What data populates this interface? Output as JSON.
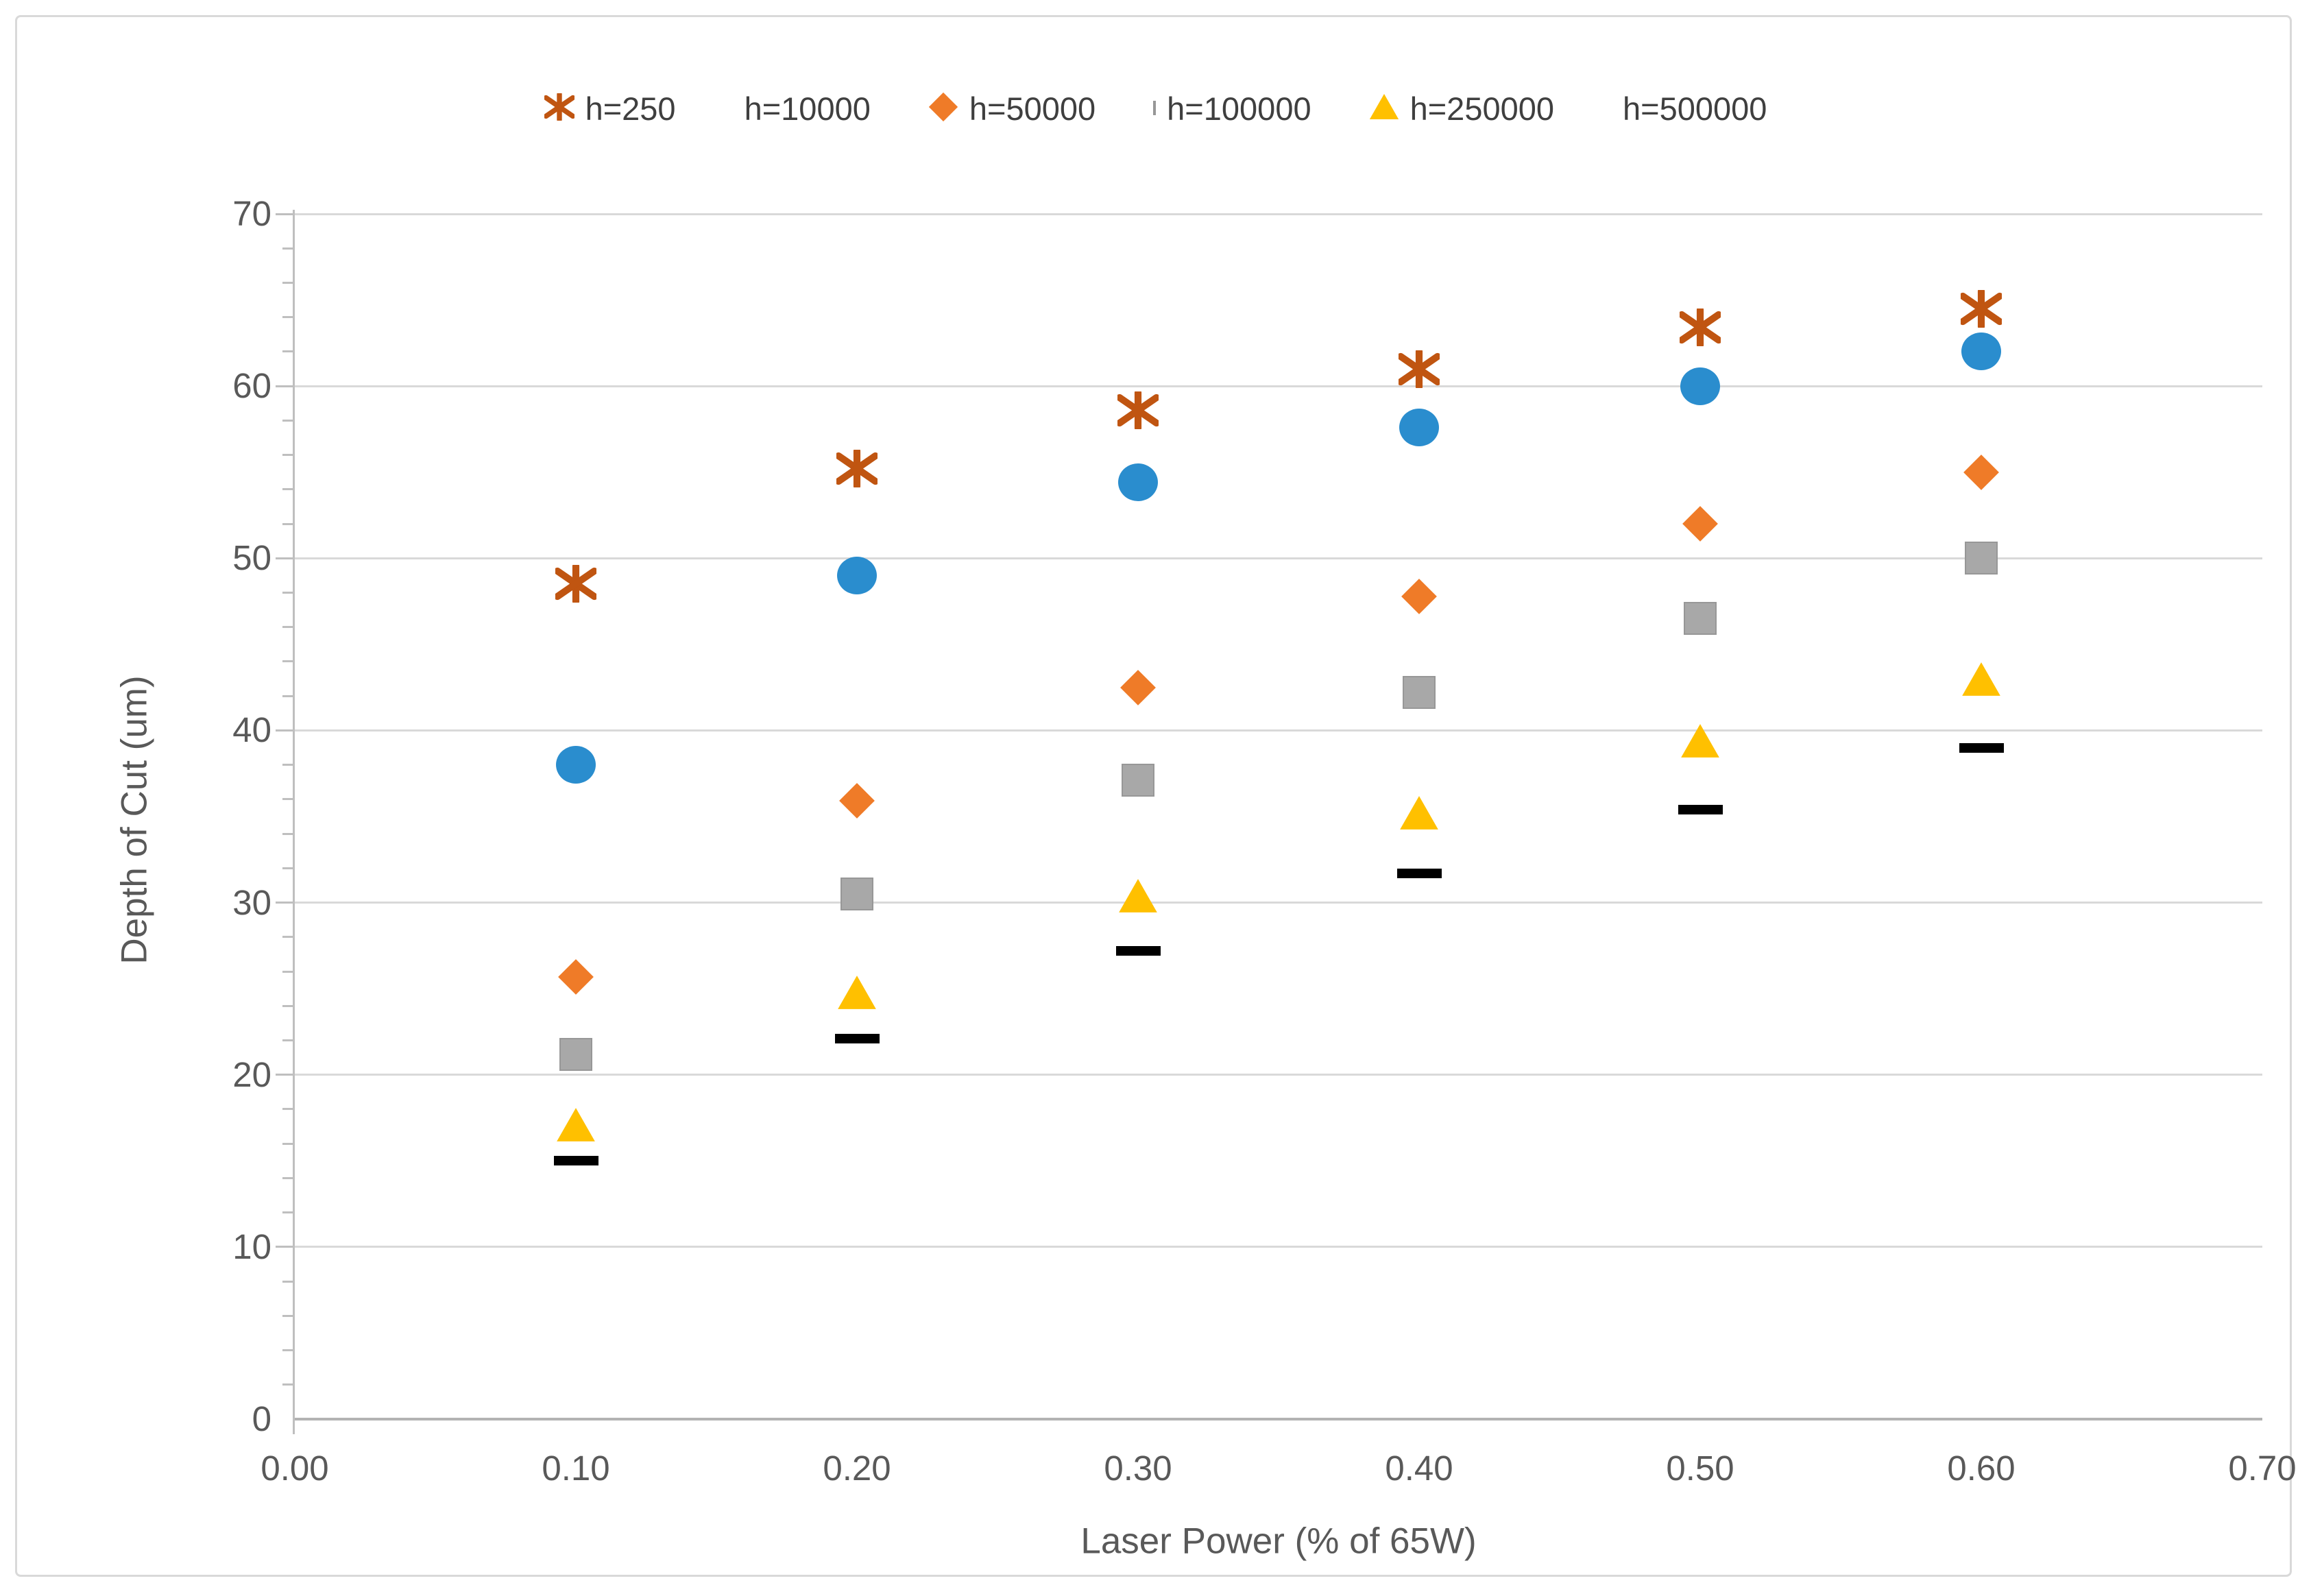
{
  "chart_data": {
    "type": "scatter",
    "title": "",
    "xlabel": "Laser Power (% of 65W)",
    "ylabel": "Depth of Cut (um)",
    "xlim": [
      0.0,
      0.7
    ],
    "ylim": [
      0,
      70
    ],
    "x_ticks": [
      "0.00",
      "0.10",
      "0.20",
      "0.30",
      "0.40",
      "0.50",
      "0.60",
      "0.70"
    ],
    "y_ticks": [
      "70",
      "60",
      "50",
      "40",
      "30",
      "20",
      "10",
      "0"
    ],
    "grid": "horizontal-only",
    "legend_position": "top",
    "x": [
      0.1,
      0.2,
      0.3,
      0.4,
      0.5,
      0.6
    ],
    "series": [
      {
        "name": "h=250",
        "marker": "asterisk",
        "color": "#C05511",
        "values": [
          48.5,
          55.2,
          58.6,
          61.0,
          63.4,
          64.5
        ]
      },
      {
        "name": "h=10000",
        "marker": "circle",
        "color": "#2A8DCE",
        "values": [
          38.0,
          49.0,
          54.4,
          57.6,
          60.0,
          62.0
        ]
      },
      {
        "name": "h=50000",
        "marker": "diamond",
        "color": "#EF7B28",
        "values": [
          25.7,
          35.9,
          42.5,
          47.8,
          52.0,
          55.0
        ]
      },
      {
        "name": "h=100000",
        "marker": "square",
        "color": "#A8A8A8",
        "values": [
          21.2,
          30.5,
          37.1,
          42.2,
          46.5,
          50.0
        ]
      },
      {
        "name": "h=250000",
        "marker": "triangle",
        "color": "#FFC000",
        "values": [
          17.1,
          24.8,
          30.4,
          35.2,
          39.4,
          43.0
        ]
      },
      {
        "name": "h=500000",
        "marker": "dash",
        "color": "#000000",
        "values": [
          15.0,
          22.1,
          27.2,
          31.7,
          35.4,
          39.0
        ]
      }
    ],
    "style_colors": {
      "gridline": "#D9D9D9",
      "axis_line": "#BFBFBF",
      "tick_text": "#595959",
      "legend_text": "#3F3F3F"
    }
  }
}
